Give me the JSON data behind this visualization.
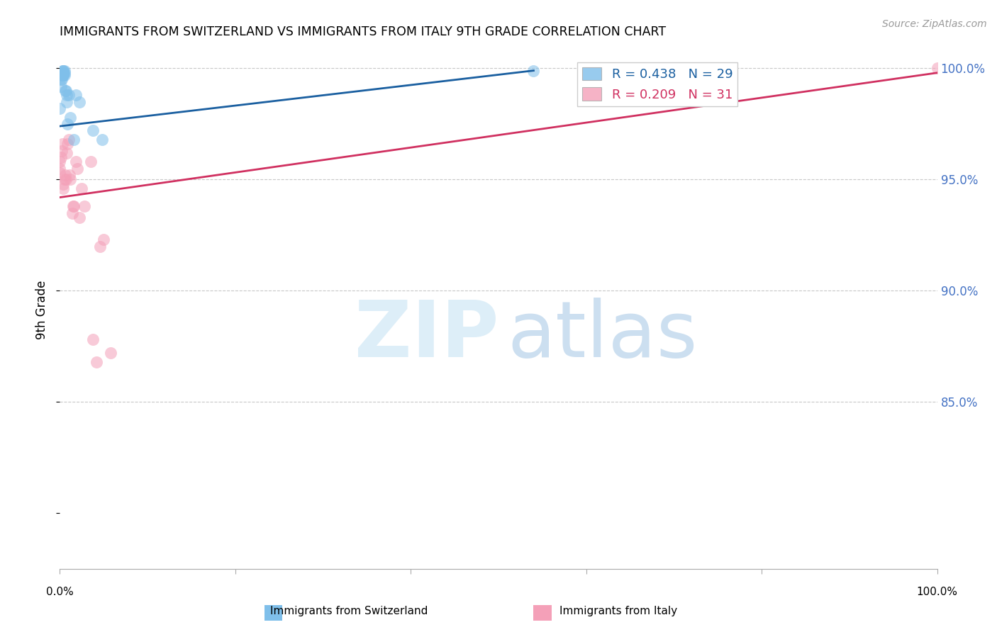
{
  "title": "IMMIGRANTS FROM SWITZERLAND VS IMMIGRANTS FROM ITALY 9TH GRADE CORRELATION CHART",
  "source": "Source: ZipAtlas.com",
  "ylabel": "9th Grade",
  "xlim": [
    0.0,
    1.0
  ],
  "ylim": [
    0.775,
    1.008
  ],
  "yticks": [
    0.85,
    0.9,
    0.95,
    1.0
  ],
  "ytick_labels": [
    "85.0%",
    "90.0%",
    "95.0%",
    "100.0%"
  ],
  "legend_r1": "R = 0.438",
  "legend_n1": "N = 29",
  "legend_r2": "R = 0.209",
  "legend_n2": "N = 31",
  "color_swiss": "#7fbfea",
  "color_italy": "#f4a0b8",
  "color_swiss_line": "#1a5fa0",
  "color_italy_line": "#d03060",
  "color_grid": "#c8c8c8",
  "color_ytick_labels": "#4472c4",
  "swiss_x": [
    0.0,
    0.001,
    0.001,
    0.002,
    0.002,
    0.003,
    0.003,
    0.003,
    0.004,
    0.004,
    0.004,
    0.004,
    0.004,
    0.005,
    0.005,
    0.005,
    0.006,
    0.007,
    0.008,
    0.008,
    0.009,
    0.01,
    0.012,
    0.016,
    0.018,
    0.022,
    0.038,
    0.048,
    0.54
  ],
  "swiss_y": [
    0.982,
    0.992,
    0.995,
    0.995,
    0.997,
    0.997,
    0.998,
    0.999,
    0.997,
    0.997,
    0.998,
    0.999,
    0.999,
    0.997,
    0.998,
    0.999,
    0.99,
    0.99,
    0.985,
    0.988,
    0.975,
    0.988,
    0.978,
    0.968,
    0.988,
    0.985,
    0.972,
    0.968,
    0.999
  ],
  "italy_x": [
    0.0,
    0.0,
    0.0,
    0.001,
    0.002,
    0.003,
    0.004,
    0.004,
    0.005,
    0.006,
    0.007,
    0.008,
    0.009,
    0.01,
    0.011,
    0.012,
    0.014,
    0.015,
    0.016,
    0.018,
    0.02,
    0.022,
    0.025,
    0.028,
    0.035,
    0.038,
    0.042,
    0.046,
    0.05,
    0.058,
    1.0
  ],
  "italy_y": [
    0.953,
    0.955,
    0.958,
    0.96,
    0.963,
    0.966,
    0.946,
    0.948,
    0.95,
    0.952,
    0.95,
    0.962,
    0.966,
    0.968,
    0.952,
    0.95,
    0.935,
    0.938,
    0.938,
    0.958,
    0.955,
    0.933,
    0.946,
    0.938,
    0.958,
    0.878,
    0.868,
    0.92,
    0.923,
    0.872,
    1.0
  ],
  "swiss_line_x0": 0.0,
  "swiss_line_x1": 0.54,
  "swiss_line_y0": 0.974,
  "swiss_line_y1": 0.999,
  "italy_line_x0": 0.0,
  "italy_line_x1": 1.0,
  "italy_line_y0": 0.942,
  "italy_line_y1": 0.998
}
